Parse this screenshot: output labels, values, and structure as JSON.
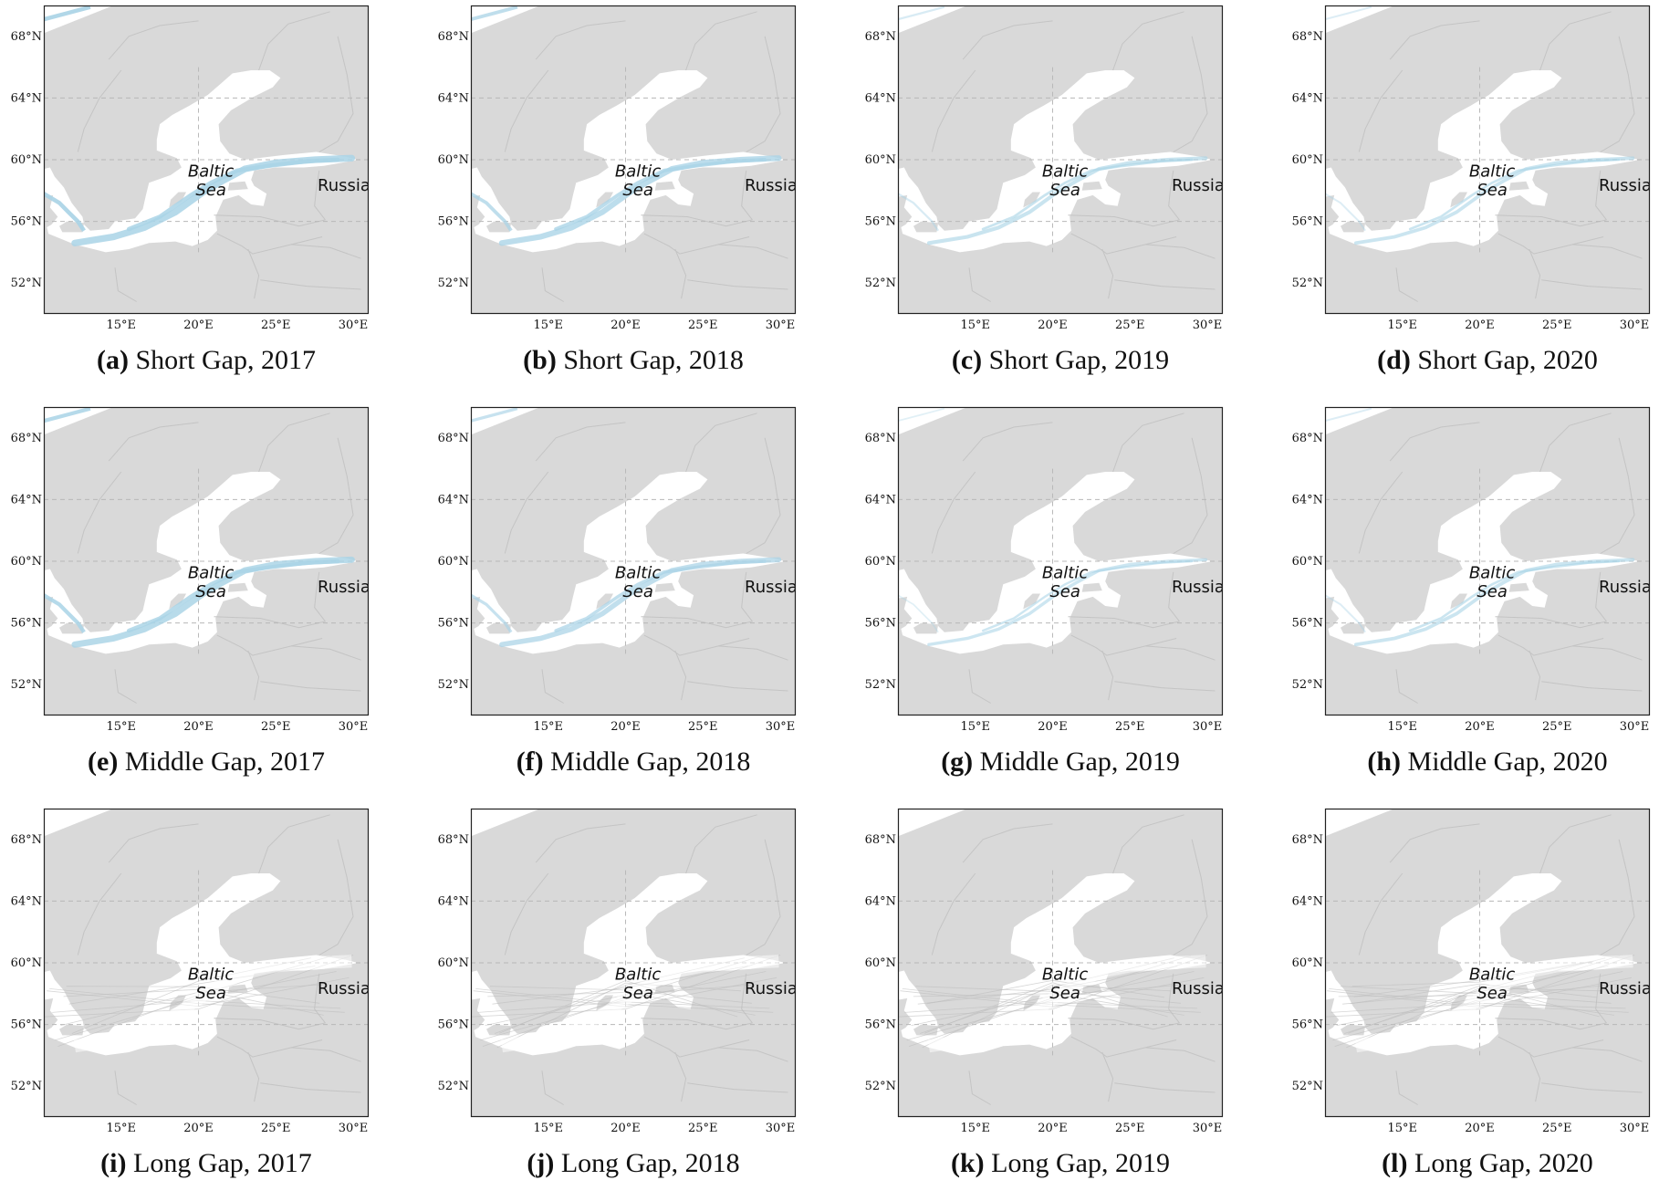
{
  "axes": {
    "lat_ticks": [
      "68°N",
      "64°N",
      "60°N",
      "56°N",
      "52°N"
    ],
    "lon_ticks": [
      "15°E",
      "20°E",
      "25°E",
      "30°E"
    ]
  },
  "map_labels": {
    "sea_line1": "Baltic",
    "sea_line2": "Sea",
    "country": "Russia"
  },
  "colors": {
    "land": "#d9d9d9",
    "water": "#ffffff",
    "border": "#c4c4c4",
    "grid": "#b8b8b8",
    "track_blue": "#a9d3e6",
    "track_grey": "#bdbdbd"
  },
  "panels": [
    {
      "label": "(a)",
      "caption": "Short Gap, 2017",
      "style": "blue",
      "level": 0.9
    },
    {
      "label": "(b)",
      "caption": "Short Gap, 2018",
      "style": "blue",
      "level": 0.75
    },
    {
      "label": "(c)",
      "caption": "Short Gap, 2019",
      "style": "blue",
      "level": 0.45
    },
    {
      "label": "(d)",
      "caption": "Short Gap, 2020",
      "style": "blue",
      "level": 0.4
    },
    {
      "label": "(e)",
      "caption": "Middle Gap, 2017",
      "style": "blue",
      "level": 0.85
    },
    {
      "label": "(f)",
      "caption": "Middle Gap, 2018",
      "style": "blue",
      "level": 0.65
    },
    {
      "label": "(g)",
      "caption": "Middle Gap, 2019",
      "style": "blue",
      "level": 0.35
    },
    {
      "label": "(h)",
      "caption": "Middle Gap, 2020",
      "style": "blue",
      "level": 0.4
    },
    {
      "label": "(i)",
      "caption": "Long Gap, 2017",
      "style": "grey",
      "level": 0.4
    },
    {
      "label": "(j)",
      "caption": "Long Gap, 2018",
      "style": "grey",
      "level": 0.6
    },
    {
      "label": "(k)",
      "caption": "Long Gap, 2019",
      "style": "grey",
      "level": 0.7
    },
    {
      "label": "(l)",
      "caption": "Long Gap, 2020",
      "style": "grey",
      "level": 0.8
    }
  ]
}
